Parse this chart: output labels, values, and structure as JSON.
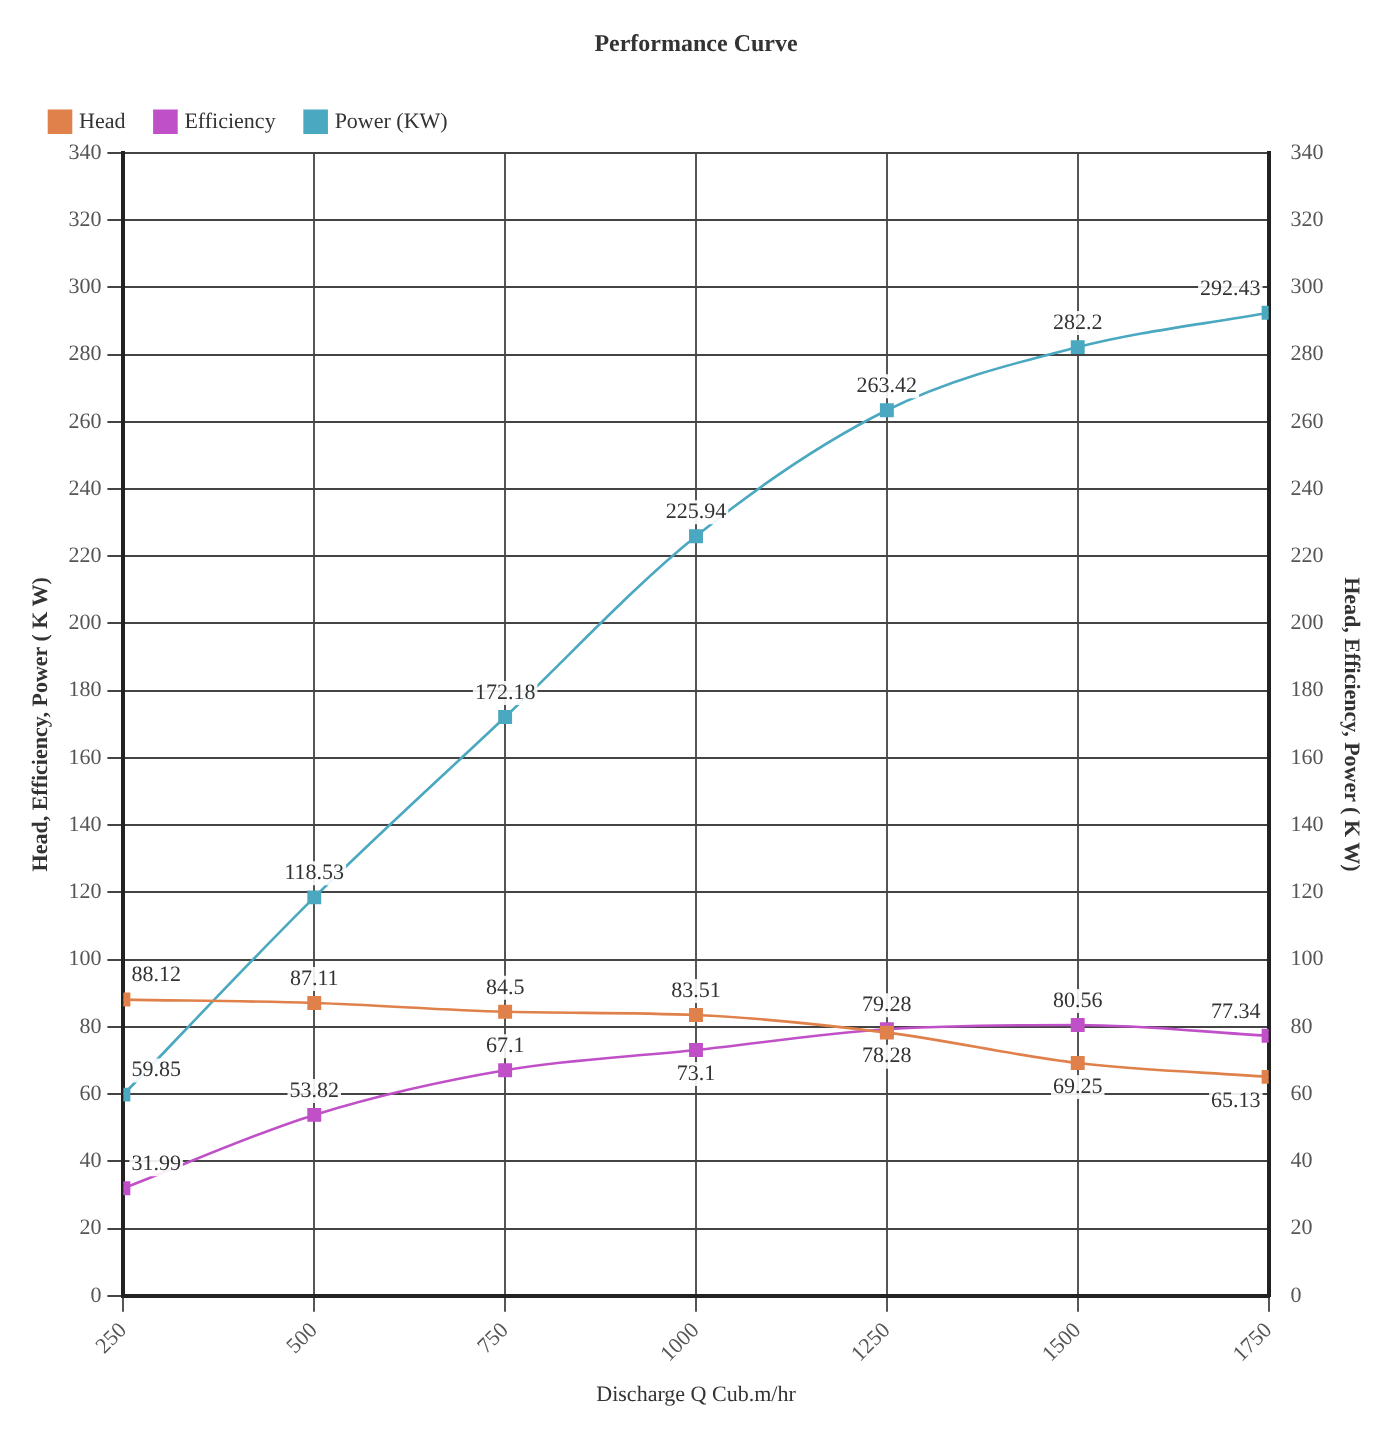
{
  "chart_data": {
    "type": "line",
    "title": "Performance Curve",
    "xlabel": "Discharge Q Cub.m/hr",
    "ylabel": "Head, Efficiency, Power ( K W)",
    "y2label": "Head, Efficiency, Power ( K W)",
    "x": [
      250,
      500,
      750,
      1000,
      1250,
      1500,
      1750
    ],
    "series": [
      {
        "name": "Head",
        "color": "#e0804a",
        "values": [
          88.12,
          87.11,
          84.5,
          83.51,
          78.28,
          69.25,
          65.13
        ]
      },
      {
        "name": "Efficiency",
        "color": "#c050c8",
        "values": [
          31.99,
          53.82,
          67.1,
          73.1,
          79.28,
          80.56,
          77.34
        ]
      },
      {
        "name": "Power (KW)",
        "color": "#4aa8c0",
        "values": [
          59.85,
          118.53,
          172.18,
          225.94,
          263.42,
          282.2,
          292.43
        ]
      }
    ],
    "xlim": [
      250,
      1750
    ],
    "xticks": [
      250,
      500,
      750,
      1000,
      1250,
      1500,
      1750
    ],
    "ylim": [
      0,
      340
    ],
    "yticks": [
      0,
      20,
      40,
      60,
      80,
      100,
      120,
      140,
      160,
      180,
      200,
      220,
      240,
      260,
      280,
      300,
      320,
      340
    ],
    "y2lim": [
      0,
      340
    ],
    "y2ticks": [
      0,
      20,
      40,
      60,
      80,
      100,
      120,
      140,
      160,
      180,
      200,
      220,
      240,
      260,
      280,
      300,
      320,
      340
    ],
    "grid": true,
    "legend": "top left",
    "marker": "square",
    "line_style": "solid",
    "data_labels": true
  }
}
